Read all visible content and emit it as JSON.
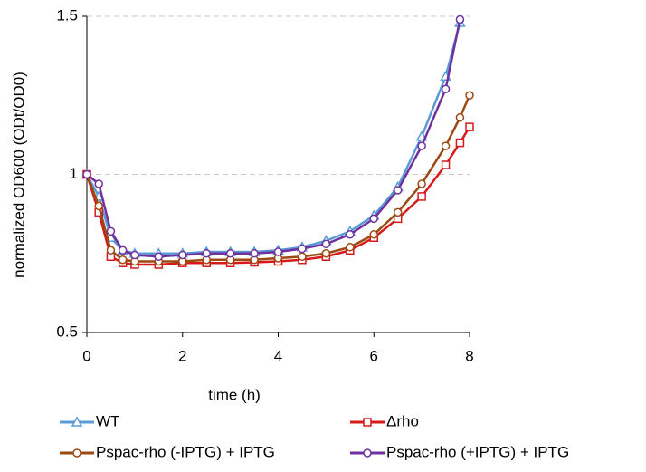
{
  "chart_data": {
    "type": "line",
    "x_label": "time (h)",
    "y_label": "normalized OD600 (ODt/OD0)",
    "x": [
      0,
      0.25,
      0.5,
      0.75,
      1,
      1.5,
      2,
      2.5,
      3,
      3.5,
      4,
      4.5,
      5,
      5.5,
      6,
      6.5,
      7,
      7.5,
      7.8,
      8
    ],
    "series": [
      {
        "name": "WT",
        "color": "#5b9bd5",
        "marker": "triangle",
        "values": [
          1.0,
          0.93,
          0.8,
          0.76,
          0.75,
          0.75,
          0.75,
          0.755,
          0.755,
          0.755,
          0.76,
          0.77,
          0.79,
          0.82,
          0.87,
          0.96,
          1.12,
          1.31,
          1.48,
          null
        ]
      },
      {
        "name": "Δrho",
        "color": "#d7191c",
        "marker": "square",
        "values": [
          1.0,
          0.88,
          0.74,
          0.72,
          0.715,
          0.715,
          0.72,
          0.72,
          0.72,
          0.722,
          0.725,
          0.73,
          0.74,
          0.76,
          0.8,
          0.86,
          0.93,
          1.03,
          1.1,
          1.15
        ]
      },
      {
        "name": "Pspac-rho (-IPTG) + IPTG",
        "color": "#9c4a12",
        "marker": "circle",
        "values": [
          1.0,
          0.9,
          0.76,
          0.73,
          0.725,
          0.725,
          0.725,
          0.73,
          0.73,
          0.73,
          0.735,
          0.74,
          0.75,
          0.77,
          0.81,
          0.88,
          0.97,
          1.09,
          1.18,
          1.25
        ]
      },
      {
        "name": "Pspac-rho (+IPTG) + IPTG",
        "color": "#7030a0",
        "marker": "circle",
        "values": [
          1.0,
          0.97,
          0.82,
          0.76,
          0.745,
          0.74,
          0.745,
          0.75,
          0.75,
          0.75,
          0.755,
          0.765,
          0.78,
          0.81,
          0.86,
          0.95,
          1.09,
          1.27,
          1.49,
          null
        ]
      }
    ],
    "xlim": [
      0,
      8
    ],
    "xticks": [
      0,
      2,
      4,
      6,
      8
    ],
    "ylim": [
      0.5,
      1.5
    ],
    "yticks": [
      0.5,
      1,
      1.5
    ],
    "grid": true
  }
}
